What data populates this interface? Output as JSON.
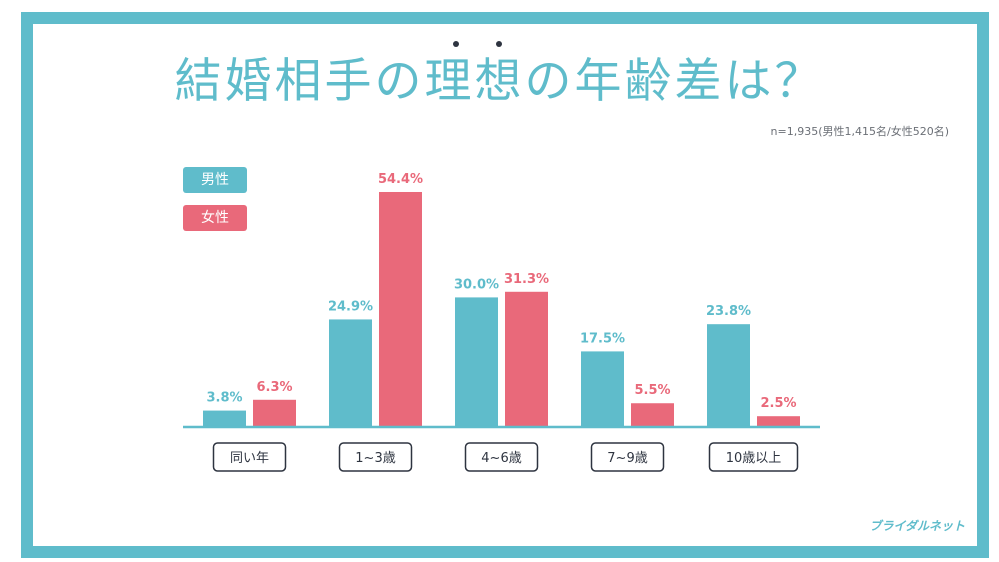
{
  "title": "結婚相手の理想の年齢差は？",
  "sample_note": "n=1,935(男性1,415名/女性520名)",
  "brand": "ブライダルネット",
  "colors": {
    "male": "#5fbccb",
    "female": "#e9697a",
    "frame": "#5fbccb",
    "axis": "#5fbccb",
    "label_border": "#2e3440"
  },
  "legend": {
    "male_label": "男性",
    "female_label": "女性"
  },
  "chart_data": {
    "type": "bar",
    "categories": [
      "同い年",
      "1~3歳",
      "4~6歳",
      "7~9歳",
      "10歳以上"
    ],
    "series": [
      {
        "name": "男性",
        "values": [
          3.8,
          24.9,
          30.0,
          17.5,
          23.8
        ]
      },
      {
        "name": "女性",
        "values": [
          6.3,
          54.4,
          31.3,
          5.5,
          2.5
        ]
      }
    ],
    "value_labels": {
      "男性": [
        "3.8%",
        "24.9%",
        "30.0%",
        "17.5%",
        "23.8%"
      ],
      "女性": [
        "6.3%",
        "54.4%",
        "31.3%",
        "5.5%",
        "2.5%"
      ]
    },
    "ylim": [
      0,
      60
    ],
    "grid": false,
    "legend_position": "top-left"
  }
}
